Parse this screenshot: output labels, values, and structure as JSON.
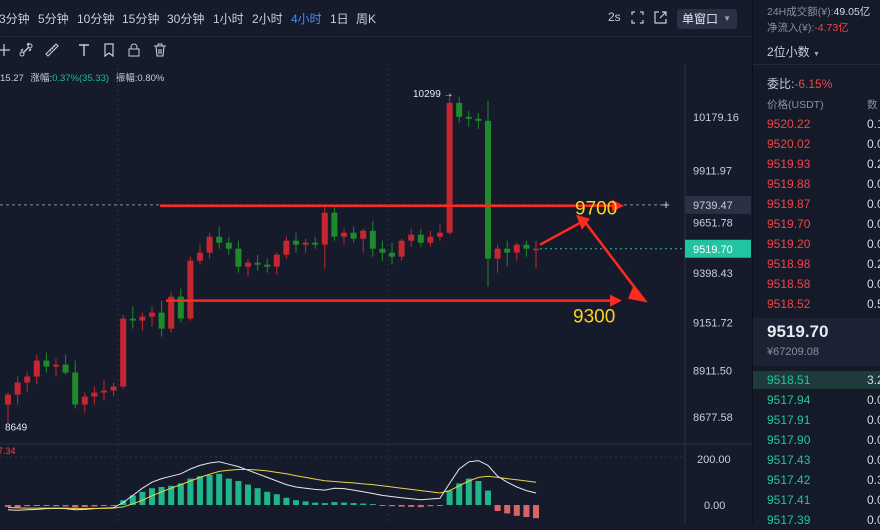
{
  "toolbar": {
    "timeframes": [
      "3分钟",
      "5分钟",
      "10分钟",
      "15分钟",
      "30分钟",
      "1小时",
      "2小时",
      "4小时",
      "1日",
      "周K"
    ],
    "active_timeframe": "4小时",
    "refresh": "2s",
    "window_mode": "单窗口"
  },
  "tools": [
    "indicator-icon",
    "link-icon",
    "ruler-icon",
    "text-icon",
    "bookmark-icon",
    "delete-icon"
  ],
  "info_line": {
    "prefix": "15.27",
    "change_label": "涨幅:",
    "change_value": "0.37%(35.33)",
    "amp_label": "振幅:",
    "amp_value": "0.80%"
  },
  "price_axis": {
    "ticks": [
      "10179.16",
      "9911.97",
      "9739.47",
      "9651.78",
      "9519.70",
      "9398.43",
      "9151.72",
      "8911.50",
      "8677.58"
    ],
    "crosshair_price": "9739.47",
    "current_price": "9519.70"
  },
  "annotations": {
    "high_label": "10299 →",
    "low_label": "8649",
    "target_up": "9700",
    "target_down": "9300"
  },
  "macd": {
    "axis": [
      "200.00",
      "0.00"
    ],
    "left_value": "7.34"
  },
  "chart_data": {
    "type": "candlestick",
    "interval": "4小时",
    "high": 10299,
    "low": 8649,
    "last": 9519.7,
    "support": 9300,
    "resistance": 9700,
    "candles": [
      {
        "o": 8740,
        "h": 8800,
        "l": 8649,
        "c": 8790
      },
      {
        "o": 8790,
        "h": 8880,
        "l": 8740,
        "c": 8850
      },
      {
        "o": 8850,
        "h": 8900,
        "l": 8800,
        "c": 8880
      },
      {
        "o": 8880,
        "h": 8990,
        "l": 8840,
        "c": 8960
      },
      {
        "o": 8960,
        "h": 9000,
        "l": 8900,
        "c": 8930
      },
      {
        "o": 8930,
        "h": 8970,
        "l": 8880,
        "c": 8940
      },
      {
        "o": 8940,
        "h": 8990,
        "l": 8890,
        "c": 8900
      },
      {
        "o": 8900,
        "h": 8960,
        "l": 8720,
        "c": 8740
      },
      {
        "o": 8740,
        "h": 8800,
        "l": 8700,
        "c": 8780
      },
      {
        "o": 8780,
        "h": 8830,
        "l": 8740,
        "c": 8800
      },
      {
        "o": 8800,
        "h": 8860,
        "l": 8760,
        "c": 8810
      },
      {
        "o": 8810,
        "h": 8850,
        "l": 8780,
        "c": 8830
      },
      {
        "o": 8830,
        "h": 9190,
        "l": 8820,
        "c": 9170
      },
      {
        "o": 9170,
        "h": 9230,
        "l": 9120,
        "c": 9160
      },
      {
        "o": 9160,
        "h": 9200,
        "l": 9110,
        "c": 9180
      },
      {
        "o": 9180,
        "h": 9230,
        "l": 9130,
        "c": 9200
      },
      {
        "o": 9200,
        "h": 9260,
        "l": 9080,
        "c": 9120
      },
      {
        "o": 9120,
        "h": 9300,
        "l": 9100,
        "c": 9280
      },
      {
        "o": 9280,
        "h": 9320,
        "l": 9150,
        "c": 9170
      },
      {
        "o": 9170,
        "h": 9480,
        "l": 9160,
        "c": 9460
      },
      {
        "o": 9460,
        "h": 9540,
        "l": 9440,
        "c": 9500
      },
      {
        "o": 9500,
        "h": 9600,
        "l": 9470,
        "c": 9580
      },
      {
        "o": 9580,
        "h": 9630,
        "l": 9520,
        "c": 9550
      },
      {
        "o": 9550,
        "h": 9580,
        "l": 9490,
        "c": 9520
      },
      {
        "o": 9520,
        "h": 9560,
        "l": 9400,
        "c": 9430
      },
      {
        "o": 9430,
        "h": 9470,
        "l": 9380,
        "c": 9450
      },
      {
        "o": 9450,
        "h": 9490,
        "l": 9410,
        "c": 9440
      },
      {
        "o": 9440,
        "h": 9470,
        "l": 9400,
        "c": 9430
      },
      {
        "o": 9430,
        "h": 9500,
        "l": 9390,
        "c": 9490
      },
      {
        "o": 9490,
        "h": 9580,
        "l": 9470,
        "c": 9560
      },
      {
        "o": 9560,
        "h": 9600,
        "l": 9500,
        "c": 9540
      },
      {
        "o": 9540,
        "h": 9570,
        "l": 9500,
        "c": 9550
      },
      {
        "o": 9550,
        "h": 9580,
        "l": 9520,
        "c": 9540
      },
      {
        "o": 9540,
        "h": 9730,
        "l": 9420,
        "c": 9700
      },
      {
        "o": 9700,
        "h": 9730,
        "l": 9560,
        "c": 9580
      },
      {
        "o": 9580,
        "h": 9620,
        "l": 9540,
        "c": 9600
      },
      {
        "o": 9600,
        "h": 9630,
        "l": 9550,
        "c": 9570
      },
      {
        "o": 9570,
        "h": 9620,
        "l": 9500,
        "c": 9610
      },
      {
        "o": 9610,
        "h": 9660,
        "l": 9480,
        "c": 9520
      },
      {
        "o": 9520,
        "h": 9560,
        "l": 9460,
        "c": 9500
      },
      {
        "o": 9500,
        "h": 9550,
        "l": 9440,
        "c": 9480
      },
      {
        "o": 9480,
        "h": 9570,
        "l": 9460,
        "c": 9560
      },
      {
        "o": 9560,
        "h": 9620,
        "l": 9530,
        "c": 9590
      },
      {
        "o": 9590,
        "h": 9620,
        "l": 9530,
        "c": 9550
      },
      {
        "o": 9550,
        "h": 9610,
        "l": 9530,
        "c": 9580
      },
      {
        "o": 9580,
        "h": 9640,
        "l": 9560,
        "c": 9600
      },
      {
        "o": 9600,
        "h": 10299,
        "l": 9590,
        "c": 10250
      },
      {
        "o": 10250,
        "h": 10280,
        "l": 10150,
        "c": 10180
      },
      {
        "o": 10180,
        "h": 10210,
        "l": 10130,
        "c": 10170
      },
      {
        "o": 10170,
        "h": 10200,
        "l": 10120,
        "c": 10160
      },
      {
        "o": 10160,
        "h": 10260,
        "l": 9330,
        "c": 9470
      },
      {
        "o": 9470,
        "h": 9540,
        "l": 9400,
        "c": 9520
      },
      {
        "o": 9520,
        "h": 9560,
        "l": 9430,
        "c": 9500
      },
      {
        "o": 9500,
        "h": 9550,
        "l": 9460,
        "c": 9540
      },
      {
        "o": 9540,
        "h": 9560,
        "l": 9480,
        "c": 9520
      },
      {
        "o": 9520,
        "h": 9560,
        "l": 9420,
        "c": 9520
      }
    ],
    "macd_hist": [
      -8,
      -10,
      -5,
      -4,
      -3,
      -5,
      -6,
      -10,
      -8,
      -6,
      -4,
      -3,
      20,
      40,
      55,
      70,
      75,
      80,
      90,
      110,
      120,
      125,
      130,
      110,
      100,
      85,
      70,
      55,
      45,
      30,
      20,
      15,
      10,
      8,
      12,
      10,
      8,
      6,
      4,
      -3,
      -5,
      -7,
      -8,
      -9,
      -5,
      -3,
      60,
      90,
      110,
      100,
      60,
      -25,
      -35,
      -45,
      -50,
      -55
    ],
    "dif": [
      -20,
      -22,
      -20,
      -18,
      -15,
      -14,
      -15,
      -20,
      -18,
      -15,
      -13,
      -11,
      10,
      40,
      70,
      95,
      110,
      120,
      130,
      150,
      165,
      175,
      180,
      170,
      160,
      145,
      130,
      115,
      100,
      85,
      75,
      70,
      65,
      62,
      70,
      68,
      62,
      55,
      48,
      40,
      35,
      30,
      26,
      22,
      25,
      28,
      90,
      150,
      180,
      185,
      165,
      120,
      95,
      75,
      60,
      50
    ],
    "dea": [
      -10,
      -12,
      -13,
      -13,
      -13,
      -13,
      -13,
      -14,
      -14,
      -14,
      -14,
      -13,
      -8,
      5,
      20,
      38,
      55,
      70,
      85,
      100,
      115,
      128,
      140,
      145,
      148,
      148,
      146,
      142,
      136,
      130,
      122,
      115,
      108,
      101,
      98,
      95,
      92,
      88,
      85,
      80,
      75,
      70,
      65,
      60,
      55,
      50,
      60,
      80,
      100,
      115,
      120,
      115,
      110,
      105,
      100,
      95
    ]
  },
  "sidebar": {
    "volume_24h_label": "24H成交额(¥):",
    "volume_24h": "49.05亿",
    "net_inflow_label": "净流入(¥):",
    "net_inflow": "-4.73亿",
    "decimals": "2位小数",
    "ratio_label": "委比:",
    "ratio": "-6.15%",
    "price_header": "价格(USDT)",
    "qty_header": "数",
    "asks": [
      [
        "9520.22",
        "0.1"
      ],
      [
        "9520.02",
        "0.0"
      ],
      [
        "9519.93",
        "0.2"
      ],
      [
        "9519.88",
        "0.0"
      ],
      [
        "9519.87",
        "0.0"
      ],
      [
        "9519.70",
        "0.0"
      ],
      [
        "9519.20",
        "0.0"
      ],
      [
        "9518.98",
        "0.2"
      ],
      [
        "9518.58",
        "0.0"
      ],
      [
        "9518.52",
        "0.5"
      ]
    ],
    "last_price": "9519.70",
    "last_cny": "¥67209.08",
    "bids": [
      [
        "9518.51",
        "3.2"
      ],
      [
        "9517.94",
        "0.0"
      ],
      [
        "9517.91",
        "0.0"
      ],
      [
        "9517.90",
        "0.0"
      ],
      [
        "9517.43",
        "0.0"
      ],
      [
        "9517.42",
        "0.3"
      ],
      [
        "9517.41",
        "0.0"
      ],
      [
        "9517.39",
        "0.0"
      ]
    ]
  }
}
